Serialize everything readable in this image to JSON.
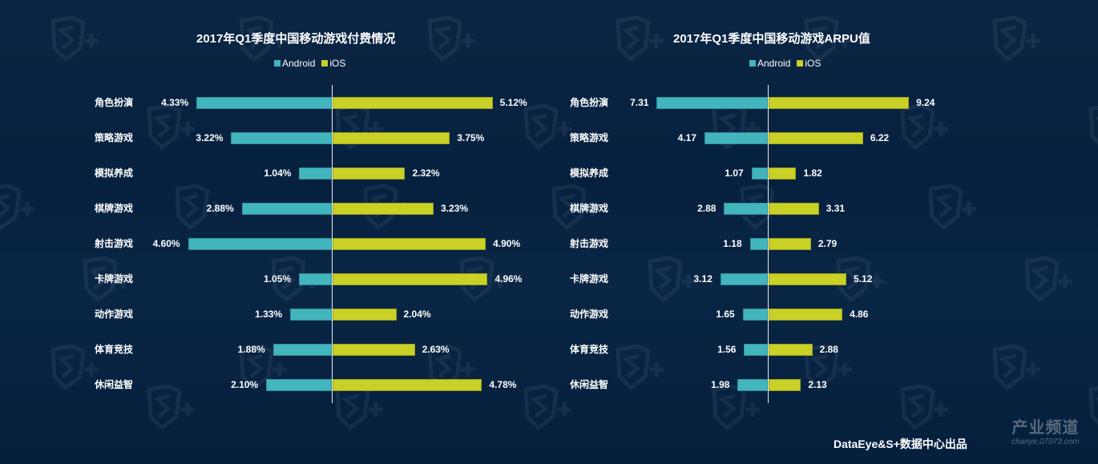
{
  "colors": {
    "background": "#06213f",
    "android": "#42b5bd",
    "ios": "#c9d026",
    "text": "#ffffff"
  },
  "chart_data": [
    {
      "type": "bar",
      "orientation": "horizontal-diverging",
      "title": "2017年Q1季度中国移动游戏付费情况",
      "legend": [
        "Android",
        "iOS"
      ],
      "legend_position": "top-center",
      "categories": [
        "角色扮演",
        "策略游戏",
        "模拟养成",
        "棋牌游戏",
        "射击游戏",
        "卡牌游戏",
        "动作游戏",
        "体育竞技",
        "休闲益智"
      ],
      "series": [
        {
          "name": "Android",
          "values": [
            4.33,
            3.22,
            1.04,
            2.88,
            4.6,
            1.05,
            1.33,
            1.88,
            2.1
          ],
          "labels": [
            "4.33%",
            "3.22%",
            "1.04%",
            "2.88%",
            "4.60%",
            "1.05%",
            "1.33%",
            "1.88%",
            "2.10%"
          ]
        },
        {
          "name": "iOS",
          "values": [
            5.12,
            3.75,
            2.32,
            3.23,
            4.9,
            4.96,
            2.04,
            2.63,
            4.78
          ],
          "labels": [
            "5.12%",
            "3.75%",
            "2.32%",
            "3.23%",
            "4.90%",
            "4.96%",
            "2.04%",
            "2.63%",
            "4.78%"
          ]
        }
      ],
      "unit": "%",
      "grid": false
    },
    {
      "type": "bar",
      "orientation": "horizontal-diverging",
      "title": "2017年Q1季度中国移动游戏ARPU值",
      "legend": [
        "Android",
        "iOS"
      ],
      "legend_position": "top-center",
      "categories": [
        "角色扮演",
        "策略游戏",
        "模拟养成",
        "棋牌游戏",
        "射击游戏",
        "卡牌游戏",
        "动作游戏",
        "体育竞技",
        "休闲益智"
      ],
      "series": [
        {
          "name": "Android",
          "values": [
            7.31,
            4.17,
            1.07,
            2.88,
            1.18,
            3.12,
            1.65,
            1.56,
            1.98
          ],
          "labels": [
            "7.31",
            "4.17",
            "1.07",
            "2.88",
            "1.18",
            "3.12",
            "1.65",
            "1.56",
            "1.98"
          ]
        },
        {
          "name": "iOS",
          "values": [
            9.24,
            6.22,
            1.82,
            3.31,
            2.79,
            5.12,
            4.86,
            2.88,
            2.13
          ],
          "labels": [
            "9.24",
            "6.22",
            "1.82",
            "3.31",
            "2.79",
            "5.12",
            "4.86",
            "2.88",
            "2.13"
          ]
        }
      ],
      "unit": "",
      "grid": false
    }
  ],
  "footer": {
    "credit": "DataEye&S+数据中心出品"
  },
  "watermark": {
    "site_name": "产业频道",
    "site_url": "chanye.07073.com",
    "logo_icon": "s-plus-shield-icon"
  }
}
